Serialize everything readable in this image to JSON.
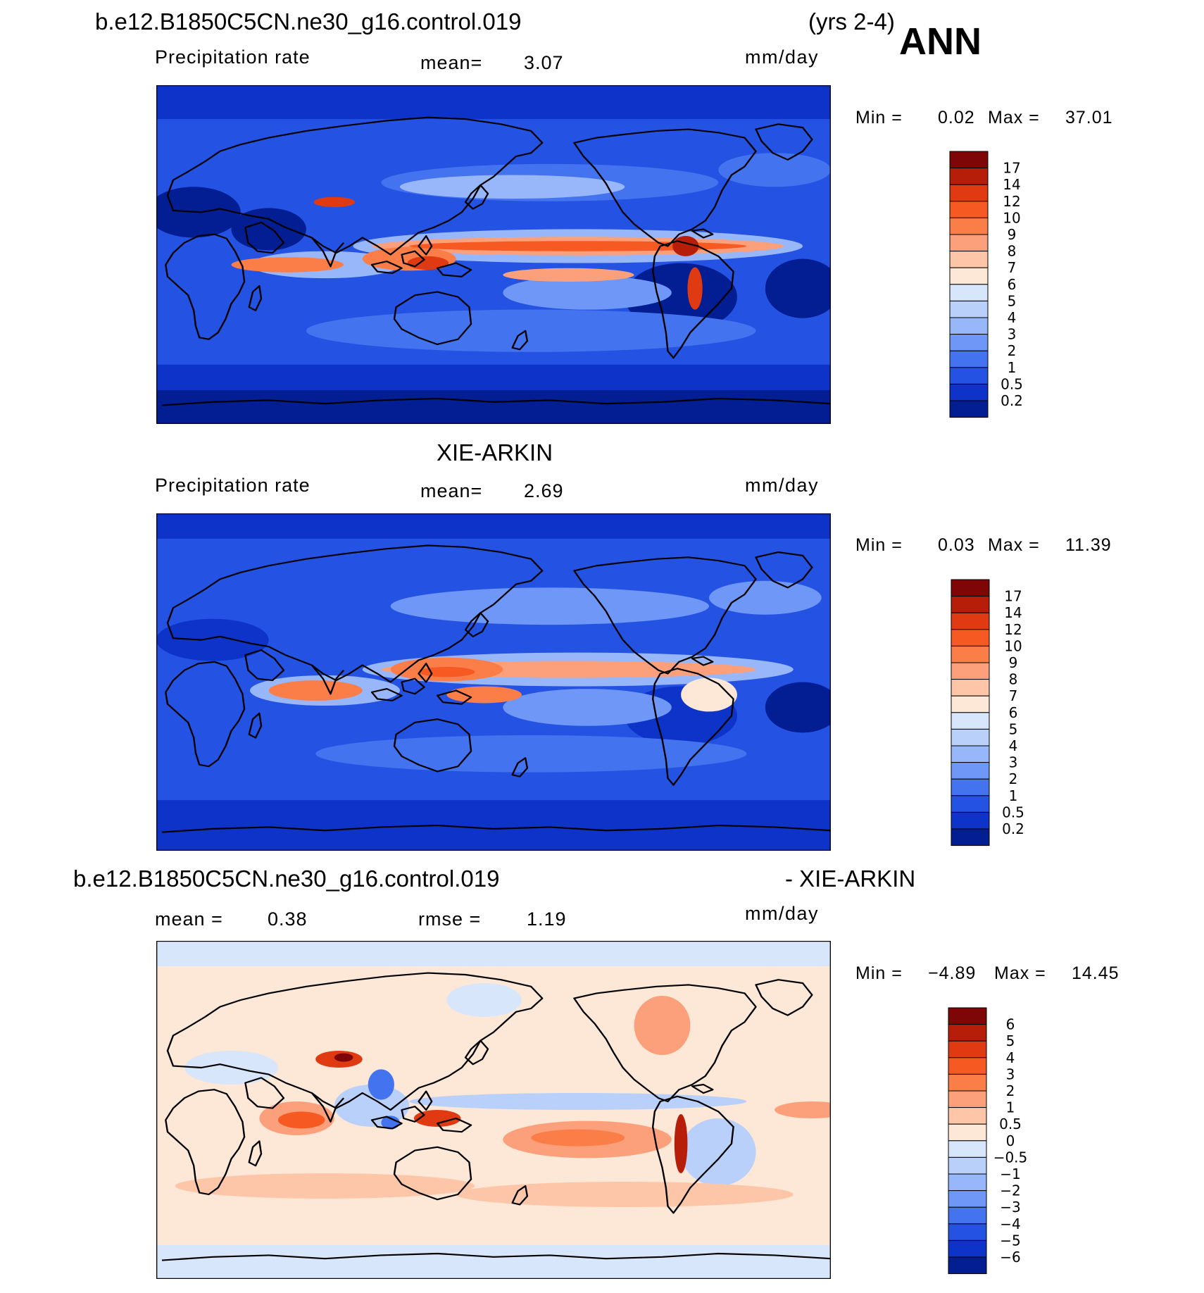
{
  "header": {
    "case_name": "b.e12.B1850C5CN.ne30_g16.control.019",
    "years": "(yrs 2-4)",
    "season": "ANN"
  },
  "panel1": {
    "variable": "Precipitation  rate",
    "mean_label": "mean=",
    "mean_value": "3.07",
    "units": "mm/day",
    "min_label": "Min  =",
    "min_value": "0.02",
    "max_label": "Max  =",
    "max_value": "37.01"
  },
  "panel2": {
    "title": "XIE-ARKIN",
    "variable": "Precipitation  rate",
    "mean_label": "mean=",
    "mean_value": "2.69",
    "units": "mm/day",
    "min_label": "Min  =",
    "min_value": "0.03",
    "max_label": "Max  =",
    "max_value": "11.39"
  },
  "panel3": {
    "title_left": "b.e12.B1850C5CN.ne30_g16.control.019",
    "title_right": "- XIE-ARKIN",
    "mean_label": "mean  =",
    "mean_value": "0.38",
    "rmse_label": "rmse  =",
    "rmse_value": "1.19",
    "units": "mm/day",
    "min_label": "Min  =",
    "min_value": "−4.89",
    "max_label": "Max  =",
    "max_value": "14.45"
  },
  "colorbar_precip": {
    "labels": [
      "17",
      "14",
      "12",
      "10",
      "9",
      "8",
      "7",
      "6",
      "5",
      "4",
      "3",
      "2",
      "1",
      "0.5",
      "0.2"
    ],
    "colors": [
      "#7e0606",
      "#b71e0a",
      "#e03a12",
      "#f65a22",
      "#fb7e49",
      "#fca07c",
      "#fdc6a8",
      "#fde7d6",
      "#d7e6fa",
      "#b9d0fa",
      "#98b7fa",
      "#6f97f7",
      "#4473f0",
      "#2453e4",
      "#0e33c8",
      "#031d93"
    ]
  },
  "colorbar_diff": {
    "labels": [
      "6",
      "5",
      "4",
      "3",
      "2",
      "1",
      "0.5",
      "0",
      "−0.5",
      "−1",
      "−2",
      "−3",
      "−4",
      "−5",
      "−6"
    ],
    "colors": [
      "#7e0606",
      "#b71e0a",
      "#e03a12",
      "#f65a22",
      "#fb7e49",
      "#fca07c",
      "#fdc6a8",
      "#fde7d6",
      "#d7e6fa",
      "#b9d0fa",
      "#98b7fa",
      "#6f97f7",
      "#4473f0",
      "#2453e4",
      "#0e33c8",
      "#031d93"
    ]
  }
}
